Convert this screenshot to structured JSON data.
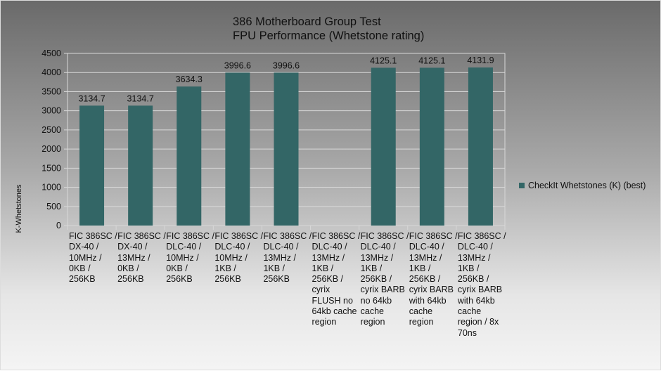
{
  "chart_data": {
    "type": "bar",
    "title": [
      "386 Motherboard Group Test",
      "FPU Performance (Whetstone rating)"
    ],
    "xlabel": "",
    "ylabel": "K-Whetstones",
    "ylim": [
      0,
      4500
    ],
    "yticks": [
      0,
      500,
      1000,
      1500,
      2000,
      2500,
      3000,
      3500,
      4000,
      4500
    ],
    "grid": true,
    "legend_position": "right",
    "bar_color": "#336666",
    "categories": [
      "FIC 386SC / DX-40 / 10MHz / 0KB / 256KB",
      "FIC 386SC / DX-40 / 13MHz / 0KB / 256KB",
      "FIC 386SC / DLC-40 / 10MHz / 0KB / 256KB",
      "FIC 386SC / DLC-40 / 10MHz / 1KB / 256KB",
      "FIC 386SC / DLC-40 / 13MHz / 1KB / 256KB",
      "FIC 386SC / DLC-40 / 13MHz / 1KB / 256KB / cyrix FLUSH no 64kb cache region",
      "FIC 386SC / DLC-40 / 13MHz / 1KB / 256KB / cyrix BARB no 64kb cache region",
      "FIC 386SC / DLC-40 / 13MHz / 1KB / 256KB / cyrix BARB with 64kb cache region",
      "FIC 386SC / DLC-40 / 13MHz / 1KB / 256KB / cyrix BARB with 64kb cache region / 8x 70ns"
    ],
    "series": [
      {
        "name": "CheckIt Whetstones (K) (best)",
        "values": [
          3134.7,
          3134.7,
          3634.3,
          3996.6,
          3996.6,
          null,
          4125.1,
          4125.1,
          4131.9
        ]
      }
    ]
  }
}
